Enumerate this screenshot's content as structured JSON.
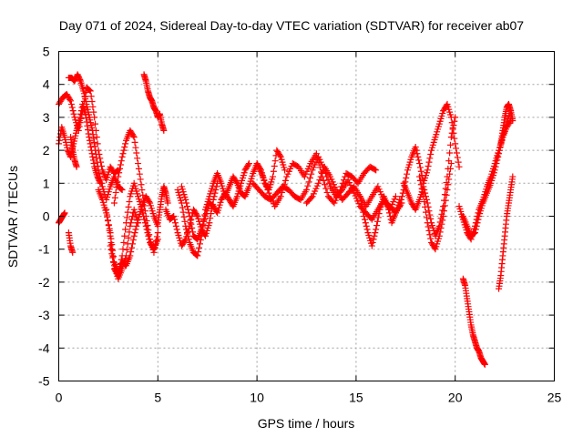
{
  "chart_data": {
    "type": "scatter",
    "title": "Day 071 of 2024, Sidereal Day-to-day VTEC variation (SDTVAR) for receiver ab07",
    "xlabel": "GPS time / hours",
    "ylabel": "SDTVAR / TECUs",
    "xlim": [
      0,
      25
    ],
    "ylim": [
      -5,
      5
    ],
    "xticks": [
      0,
      5,
      10,
      15,
      20,
      25
    ],
    "yticks": [
      -5,
      -4,
      -3,
      -2,
      -1,
      0,
      1,
      2,
      3,
      4,
      5
    ],
    "grid": true,
    "marker": "+",
    "color": "#ff0000",
    "series": [
      {
        "name": "s1",
        "x": [
          0.0,
          0.2,
          0.4,
          0.6,
          0.8,
          1.0,
          1.2,
          1.4,
          1.6,
          1.8,
          2.0,
          2.2,
          2.4,
          2.6,
          2.8,
          3.0
        ],
        "y": [
          3.4,
          3.6,
          3.7,
          3.5,
          3.0,
          2.6,
          3.2,
          3.9,
          3.8,
          3.0,
          2.0,
          1.4,
          1.1,
          1.5,
          1.3,
          1.4
        ]
      },
      {
        "name": "s2",
        "x": [
          0.0,
          0.15,
          0.3,
          0.45,
          0.6,
          0.75,
          0.9,
          1.05,
          1.2,
          1.35,
          1.5,
          1.65,
          1.8,
          1.95,
          2.1
        ],
        "y": [
          2.2,
          2.7,
          2.4,
          2.0,
          1.8,
          2.2,
          2.6,
          2.9,
          3.4,
          3.1,
          2.5,
          2.0,
          1.5,
          1.2,
          1.0
        ]
      },
      {
        "name": "s3",
        "x": [
          0.5,
          0.65,
          0.8,
          0.95,
          1.1,
          1.25,
          1.4,
          1.55,
          1.7,
          1.85,
          2.0,
          2.2,
          2.4,
          2.6,
          2.8,
          3.0,
          3.2
        ],
        "y": [
          4.2,
          4.2,
          4.1,
          4.3,
          4.1,
          3.8,
          3.4,
          3.0,
          2.6,
          2.0,
          1.4,
          0.9,
          0.5,
          0.9,
          1.2,
          0.9,
          0.8
        ]
      },
      {
        "name": "s4",
        "x": [
          0.0,
          0.1,
          0.2,
          0.3
        ],
        "y": [
          -0.2,
          -0.1,
          0.0,
          0.1
        ]
      },
      {
        "name": "s5",
        "x": [
          0.5,
          0.6,
          0.7
        ],
        "y": [
          -0.5,
          -0.9,
          -1.1
        ]
      },
      {
        "name": "s6",
        "x": [
          0.6,
          0.7,
          0.8,
          0.9
        ],
        "y": [
          2.4,
          2.0,
          1.7,
          1.5
        ]
      },
      {
        "name": "s7",
        "x": [
          2.0,
          2.2,
          2.4,
          2.6,
          2.8,
          3.0,
          3.2,
          3.4,
          3.6,
          3.8,
          4.0,
          4.2,
          4.4,
          4.6,
          4.8,
          5.0
        ],
        "y": [
          0.8,
          0.5,
          0.1,
          -0.5,
          -1.4,
          -1.7,
          -1.4,
          -1.5,
          -1.2,
          -0.6,
          -0.1,
          0.3,
          0.6,
          0.4,
          0.0,
          -0.3
        ]
      },
      {
        "name": "s8",
        "x": [
          2.4,
          2.6,
          2.8,
          3.0,
          3.2,
          3.4,
          3.6,
          3.8,
          4.0,
          4.2,
          4.4,
          4.6,
          4.8,
          5.0
        ],
        "y": [
          0.2,
          -0.6,
          -1.6,
          -1.8,
          -1.2,
          -0.2,
          0.6,
          1.0,
          0.6,
          0.2,
          -0.3,
          -0.8,
          -1.0,
          -0.7
        ]
      },
      {
        "name": "s9",
        "x": [
          2.8,
          3.0,
          3.2,
          3.4,
          3.6,
          3.8,
          4.0,
          4.2,
          4.4,
          4.6,
          4.8,
          5.0
        ],
        "y": [
          0.4,
          1.2,
          1.8,
          2.3,
          2.6,
          2.4,
          1.6,
          0.8,
          0.0,
          -0.7,
          -1.1,
          -0.5
        ]
      },
      {
        "name": "s10",
        "x": [
          2.6,
          2.8,
          3.0,
          3.2,
          3.4,
          3.6,
          3.8,
          4.0
        ],
        "y": [
          -0.9,
          -1.5,
          -1.9,
          -1.6,
          -1.2,
          -0.3,
          0.2,
          -0.2
        ]
      },
      {
        "name": "s11",
        "x": [
          4.3,
          4.4,
          4.5,
          4.6,
          4.7,
          4.8,
          4.9,
          5.0,
          5.1,
          5.2,
          5.3
        ],
        "y": [
          4.3,
          4.1,
          3.8,
          3.6,
          3.5,
          3.3,
          3.2,
          3.0,
          3.1,
          2.8,
          2.6
        ]
      },
      {
        "name": "s12",
        "x": [
          5.0,
          5.1,
          5.2,
          5.3,
          5.4,
          5.5
        ],
        "y": [
          -0.2,
          0.2,
          0.6,
          0.9,
          0.7,
          0.4
        ]
      },
      {
        "name": "s13",
        "x": [
          6.0,
          6.2,
          6.4,
          6.6,
          6.8,
          7.0,
          7.2,
          7.4,
          7.6,
          7.8,
          8.0,
          8.2,
          8.4,
          8.6,
          8.8,
          9.0,
          9.2,
          9.4,
          9.6,
          9.8,
          10.0,
          10.2,
          10.4,
          10.6,
          10.8,
          11.0,
          11.2,
          11.4
        ],
        "y": [
          0.8,
          0.4,
          -0.3,
          -0.8,
          -1.1,
          -1.2,
          -0.6,
          0.2,
          0.6,
          1.0,
          1.3,
          1.0,
          0.6,
          0.9,
          1.2,
          1.0,
          0.7,
          0.6,
          0.9,
          1.3,
          1.6,
          1.4,
          1.0,
          0.8,
          1.2,
          2.0,
          1.8,
          1.4
        ]
      },
      {
        "name": "s14",
        "x": [
          5.4,
          5.6,
          5.8,
          6.0,
          6.2,
          6.4,
          6.6,
          6.8,
          7.0,
          7.2,
          7.4,
          7.6,
          7.8,
          8.0
        ],
        "y": [
          0.2,
          -0.1,
          0.0,
          -0.5,
          -0.9,
          -0.7,
          -0.3,
          0.2,
          0.0,
          -0.4,
          -0.6,
          -0.2,
          0.5,
          1.0
        ]
      },
      {
        "name": "s15",
        "x": [
          6.2,
          6.4,
          6.6,
          6.8,
          7.0,
          7.2,
          7.4,
          7.6,
          7.8,
          8.0,
          8.2,
          8.4,
          8.6,
          8.8,
          9.0,
          9.2,
          9.4,
          9.6
        ],
        "y": [
          0.9,
          0.5,
          0.0,
          -0.6,
          -0.7,
          -0.4,
          0.0,
          0.4,
          0.3,
          0.1,
          0.5,
          0.7,
          0.5,
          0.3,
          0.6,
          1.0,
          1.4,
          1.6
        ]
      },
      {
        "name": "s16",
        "x": [
          10.0,
          10.3,
          10.6,
          10.9,
          11.2,
          11.5,
          11.8,
          12.1,
          12.4,
          12.7,
          13.0,
          13.3,
          13.6,
          13.9,
          14.2,
          14.5,
          14.8,
          15.1,
          15.4,
          15.7,
          16.0
        ],
        "y": [
          1.6,
          1.2,
          0.7,
          0.3,
          0.6,
          1.2,
          1.6,
          1.5,
          1.2,
          1.6,
          1.9,
          1.2,
          0.6,
          0.4,
          0.8,
          1.3,
          1.2,
          1.0,
          1.3,
          1.5,
          1.4
        ]
      },
      {
        "name": "s17",
        "x": [
          9.8,
          10.1,
          10.4,
          10.7,
          11.0,
          11.3,
          11.6,
          11.9,
          12.2,
          12.5,
          12.8,
          13.1,
          13.4,
          13.7,
          14.0,
          14.3,
          14.6,
          14.9,
          15.2,
          15.5,
          15.8,
          16.1,
          16.4,
          16.7,
          17.0,
          17.3
        ],
        "y": [
          1.0,
          0.8,
          0.6,
          0.5,
          0.7,
          0.9,
          0.8,
          0.6,
          0.5,
          0.8,
          1.4,
          1.8,
          1.4,
          0.9,
          0.6,
          0.8,
          1.1,
          0.7,
          0.3,
          0.1,
          -0.1,
          0.2,
          0.5,
          0.3,
          0.1,
          0.4
        ]
      },
      {
        "name": "s18",
        "x": [
          12.5,
          12.8,
          13.1,
          13.4,
          13.7,
          14.0,
          14.3,
          14.6,
          14.9,
          15.2,
          15.5,
          15.8,
          16.1,
          16.4,
          16.7,
          17.0
        ],
        "y": [
          0.4,
          0.6,
          1.0,
          1.5,
          1.2,
          0.8,
          0.5,
          0.7,
          0.9,
          0.6,
          0.3,
          0.6,
          0.9,
          0.5,
          0.2,
          0.6
        ]
      },
      {
        "name": "s19",
        "x": [
          15.2,
          15.4,
          15.6,
          15.8,
          16.0,
          16.2,
          16.4,
          16.6,
          16.8,
          17.0,
          17.2
        ],
        "y": [
          0.6,
          0.0,
          -0.5,
          -0.9,
          -0.4,
          0.2,
          0.6,
          0.3,
          -0.2,
          0.1,
          0.5
        ]
      },
      {
        "name": "s20",
        "x": [
          17.2,
          17.4,
          17.6,
          17.8,
          18.0,
          18.2,
          18.4,
          18.6,
          18.8,
          19.0,
          19.2,
          19.4,
          19.6,
          19.8,
          20.0,
          20.2
        ],
        "y": [
          0.3,
          0.8,
          1.4,
          1.8,
          2.1,
          1.6,
          1.0,
          1.4,
          2.0,
          2.4,
          2.8,
          3.2,
          3.4,
          3.0,
          2.2,
          1.5
        ]
      },
      {
        "name": "s21",
        "x": [
          17.4,
          17.6,
          17.8,
          18.0,
          18.2,
          18.4,
          18.6,
          18.8,
          19.0,
          19.2,
          19.4,
          19.6,
          19.8,
          20.0
        ],
        "y": [
          1.0,
          0.7,
          0.4,
          0.2,
          0.5,
          0.9,
          0.4,
          -0.2,
          -0.6,
          -0.3,
          0.3,
          1.2,
          2.4,
          3.0
        ]
      },
      {
        "name": "s22",
        "x": [
          18.2,
          18.4,
          18.6,
          18.8,
          19.0,
          19.2,
          19.4,
          19.6,
          19.8
        ],
        "y": [
          1.2,
          0.6,
          -0.2,
          -0.8,
          -1.0,
          -0.6,
          0.0,
          0.8,
          1.6
        ]
      },
      {
        "name": "s23",
        "x": [
          20.2,
          20.4,
          20.6,
          20.8,
          21.0,
          21.2,
          21.4,
          21.6,
          21.8,
          22.0,
          22.2,
          22.4,
          22.6,
          22.8
        ],
        "y": [
          0.3,
          -0.1,
          -0.5,
          -0.7,
          -0.3,
          0.2,
          0.5,
          0.9,
          1.2,
          1.6,
          2.0,
          2.4,
          2.8,
          3.2
        ]
      },
      {
        "name": "s24",
        "x": [
          20.4,
          20.6,
          20.8,
          21.0,
          21.2,
          21.4,
          21.6,
          21.8,
          22.0,
          22.2,
          22.4,
          22.6,
          22.8
        ],
        "y": [
          0.0,
          -0.3,
          -0.6,
          -0.5,
          0.0,
          0.4,
          0.7,
          1.0,
          1.4,
          1.9,
          2.4,
          2.7,
          2.9
        ]
      },
      {
        "name": "s25",
        "x": [
          20.4,
          20.5,
          20.6,
          20.7,
          20.8,
          20.9,
          21.0,
          21.1,
          21.2,
          21.3,
          21.4,
          21.5
        ],
        "y": [
          -1.9,
          -2.1,
          -2.5,
          -2.9,
          -3.3,
          -3.6,
          -3.8,
          -4.0,
          -4.1,
          -4.3,
          -4.4,
          -4.5
        ]
      },
      {
        "name": "s26",
        "x": [
          22.2,
          22.3,
          22.4,
          22.5,
          22.6,
          22.7,
          22.8,
          22.9
        ],
        "y": [
          -2.2,
          -1.8,
          -1.2,
          -0.6,
          0.0,
          0.4,
          0.8,
          1.2
        ]
      },
      {
        "name": "s27",
        "x": [
          22.3,
          22.4,
          22.5,
          22.6,
          22.7,
          22.8,
          22.9
        ],
        "y": [
          2.2,
          2.6,
          3.0,
          3.3,
          3.4,
          3.2,
          2.9
        ]
      }
    ]
  }
}
